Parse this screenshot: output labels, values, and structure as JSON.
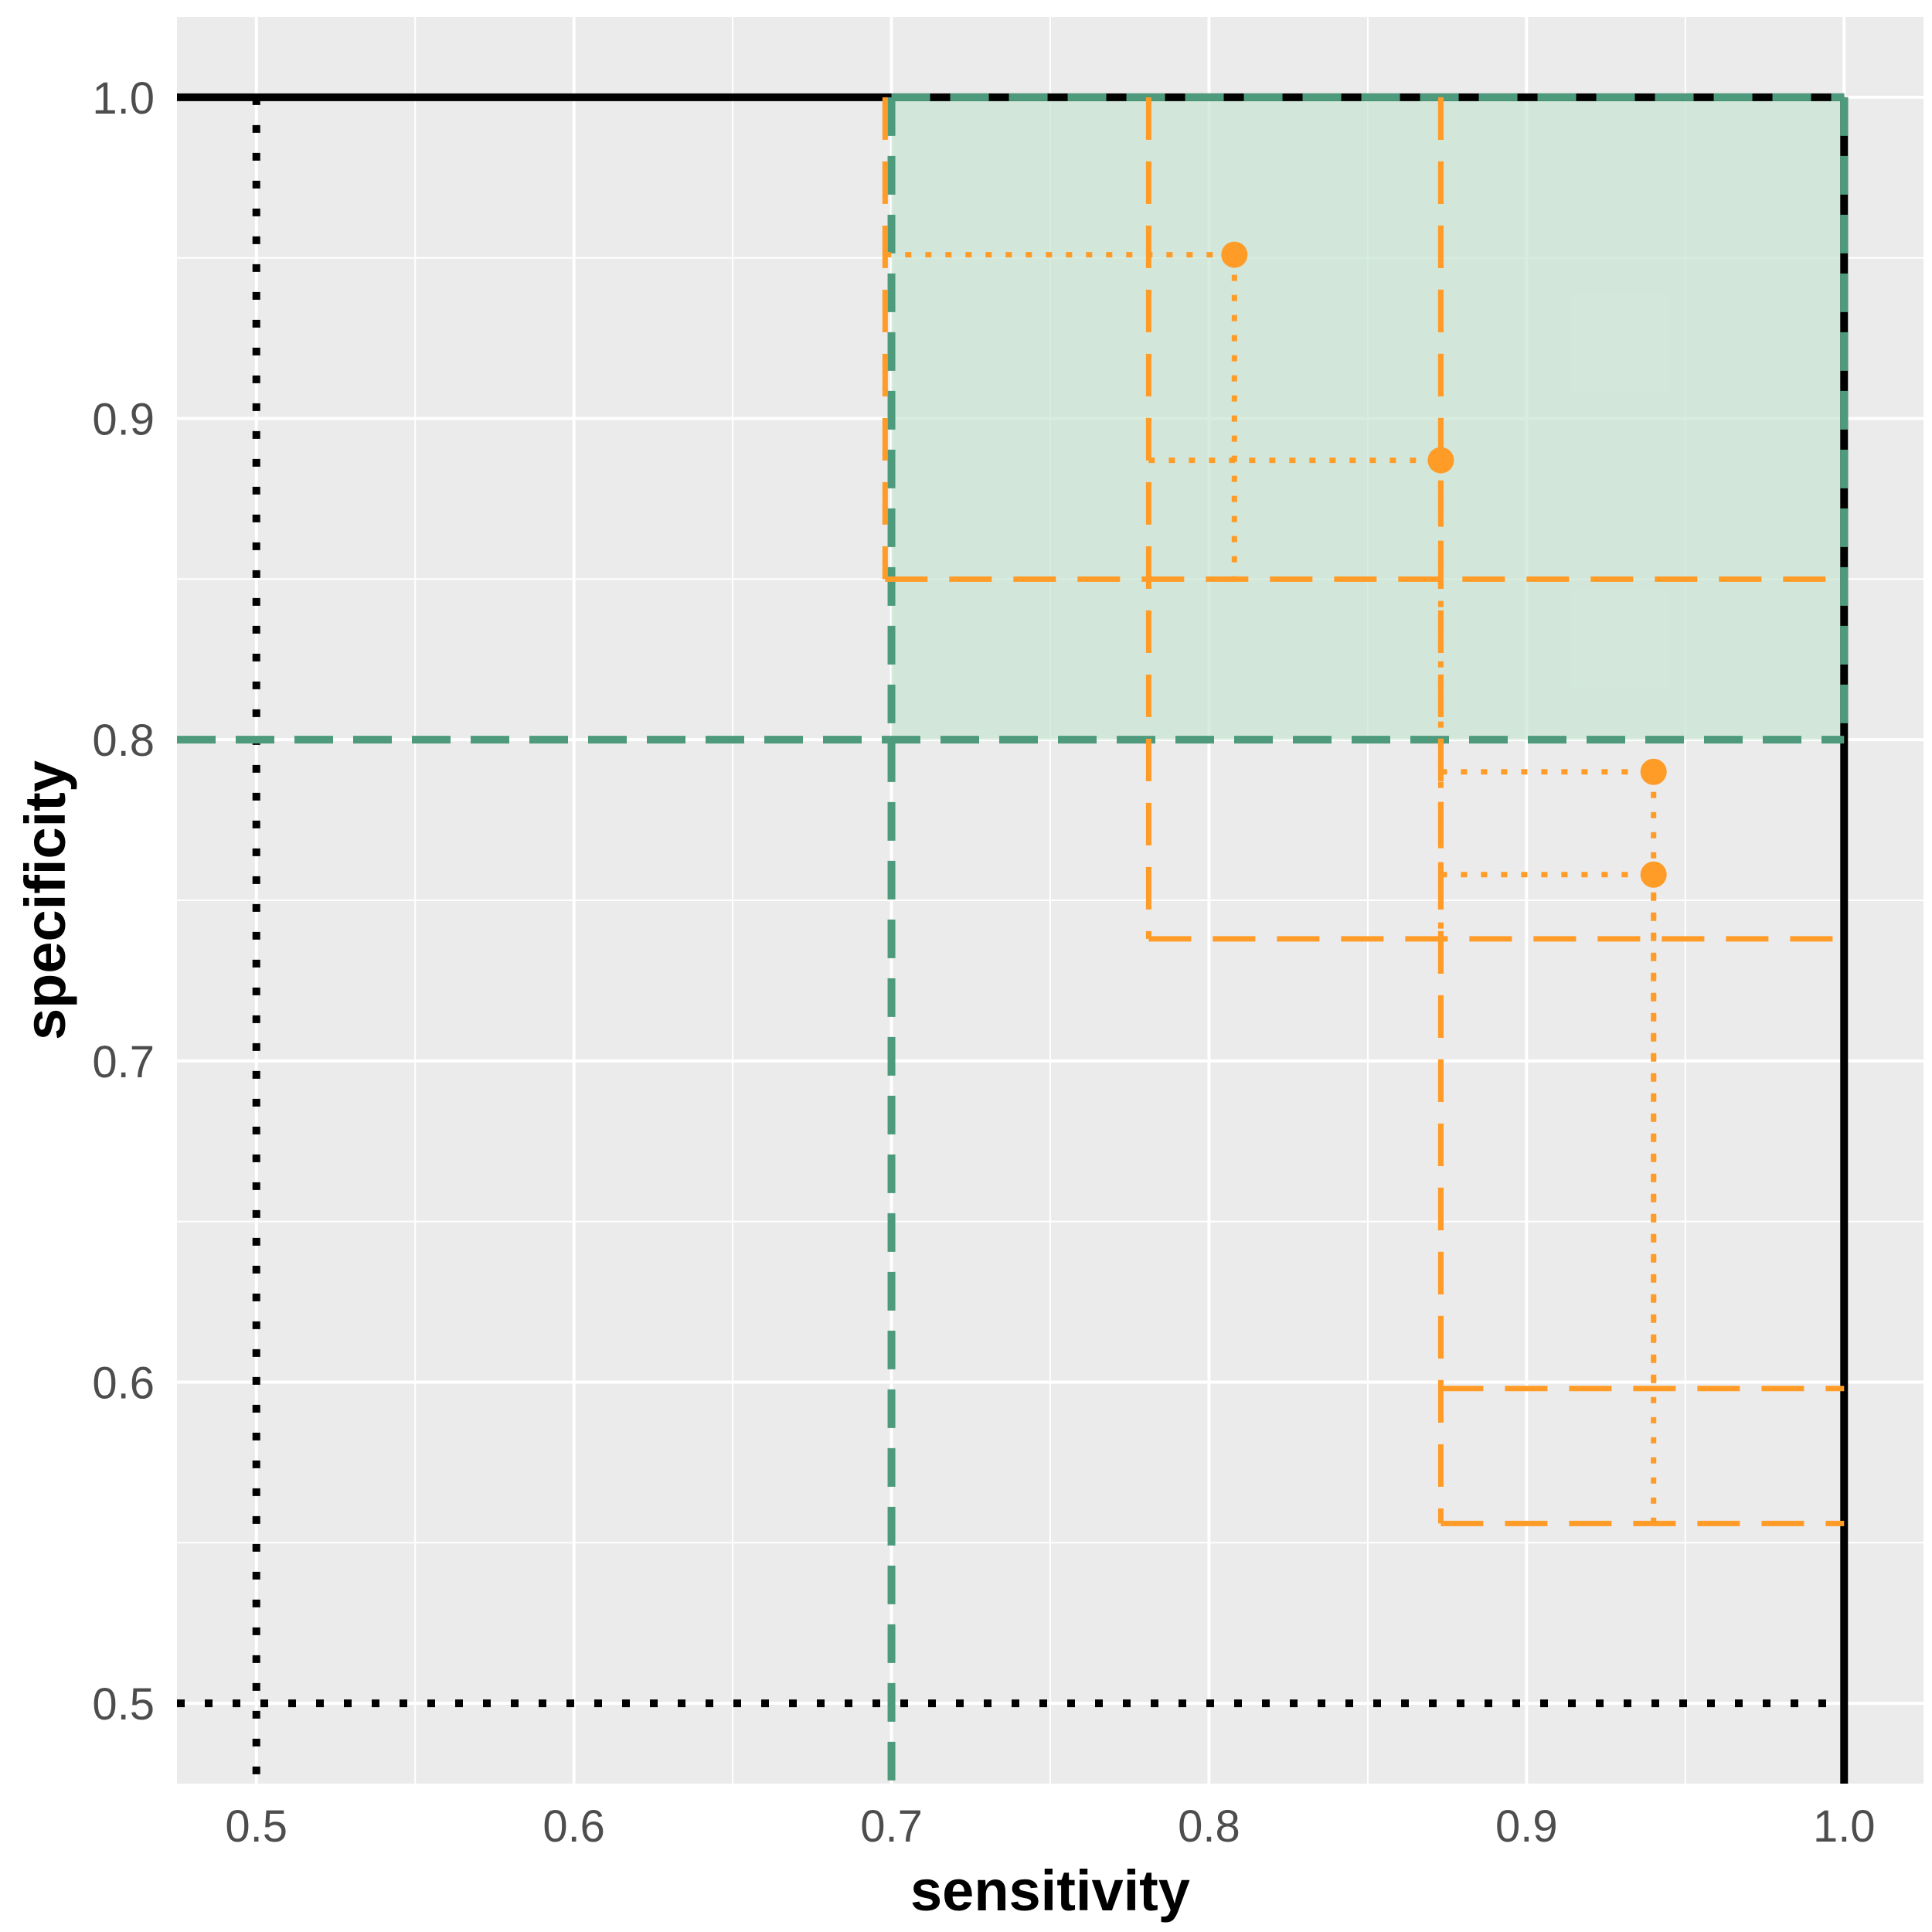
{
  "chart_data": {
    "type": "scatter",
    "xlabel": "sensitivity",
    "ylabel": "specificity",
    "xlim": [
      0.475,
      1.025
    ],
    "ylim": [
      0.475,
      1.025
    ],
    "x_ticks": [
      {
        "value": 0.5,
        "label": "0.5"
      },
      {
        "value": 0.6,
        "label": "0.6"
      },
      {
        "value": 0.7,
        "label": "0.7"
      },
      {
        "value": 0.8,
        "label": "0.8"
      },
      {
        "value": 0.9,
        "label": "0.9"
      },
      {
        "value": 1.0,
        "label": "1.0"
      }
    ],
    "y_ticks": [
      {
        "value": 0.5,
        "label": "0.5"
      },
      {
        "value": 0.6,
        "label": "0.6"
      },
      {
        "value": 0.7,
        "label": "0.7"
      },
      {
        "value": 0.8,
        "label": "0.8"
      },
      {
        "value": 0.9,
        "label": "0.9"
      },
      {
        "value": 1.0,
        "label": "1.0"
      }
    ],
    "grid": true,
    "colors": {
      "panel": "#ebebeb",
      "grid": "#ffffff",
      "target": "#4d9a7c",
      "target_fill": "#c8e6d3",
      "study": "#ff9b27",
      "reference": "#000000",
      "tick_text": "#4d4d4d"
    },
    "target_region": {
      "sensitivity_min": 0.7,
      "specificity_min": 0.8
    },
    "reference_lines": {
      "sensitivity": 0.5,
      "specificity": 0.5
    },
    "points": [
      {
        "sensitivity": 0.808,
        "specificity": 0.951,
        "sensitivity_lower": 0.698,
        "specificity_lower": 0.85
      },
      {
        "sensitivity": 0.873,
        "specificity": 0.887,
        "sensitivity_lower": 0.781,
        "specificity_lower": 0.738
      },
      {
        "sensitivity": 0.94,
        "specificity": 0.79,
        "sensitivity_lower": 0.873,
        "specificity_lower": 0.598
      },
      {
        "sensitivity": 0.94,
        "specificity": 0.758,
        "sensitivity_lower": 0.873,
        "specificity_lower": 0.556
      }
    ]
  }
}
